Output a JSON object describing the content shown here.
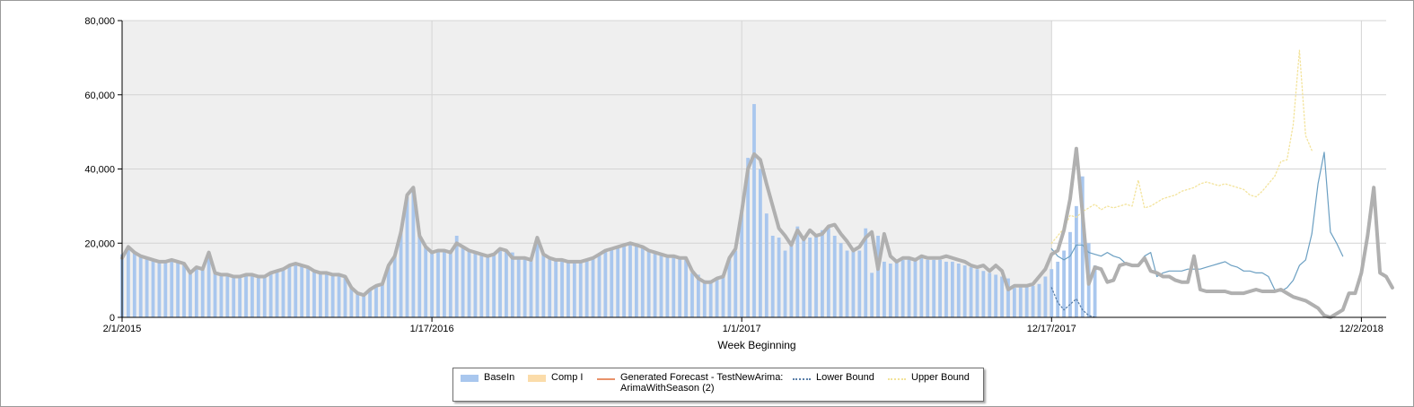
{
  "chart_data": {
    "type": "bar",
    "title": "",
    "xlabel": "Week Beginning",
    "ylabel": "",
    "ylim": [
      0,
      80000
    ],
    "yticks": [
      "0",
      "20,000",
      "40,000",
      "60,000",
      "80,000"
    ],
    "x_tick_labels": [
      "2/1/2015",
      "1/17/2016",
      "1/1/2017",
      "12/17/2017",
      "12/2/2018"
    ],
    "x_start": "2/1/2015",
    "x_interval": "weekly",
    "history_end": "12/17/2017",
    "x_end": "12/30/2018",
    "grid": true,
    "legend_position": "bottom",
    "series": [
      {
        "name": "BaseIn",
        "type": "bar",
        "color": "#a9c7ee",
        "x_start": "2/1/2015",
        "values": [
          17000,
          19000,
          17500,
          16500,
          16000,
          15500,
          15000,
          15000,
          15500,
          15000,
          14500,
          12000,
          13500,
          13000,
          17500,
          12000,
          11500,
          11500,
          11000,
          11000,
          11500,
          11500,
          11000,
          11000,
          12000,
          12500,
          13000,
          14000,
          14500,
          14000,
          13500,
          12500,
          12000,
          12000,
          11500,
          11500,
          11000,
          8000,
          6500,
          6000,
          7500,
          8500,
          9000,
          14000,
          16500,
          23000,
          32500,
          35000,
          22000,
          19000,
          17500,
          18000,
          18000,
          18000,
          22000,
          19000,
          18000,
          17500,
          17000,
          16500,
          17000,
          18500,
          18000,
          17500,
          16000,
          16000,
          16000,
          20000,
          17000,
          16000,
          15500,
          15500,
          15000,
          15000,
          15000,
          15500,
          16000,
          17000,
          18000,
          18500,
          19000,
          19500,
          20000,
          19500,
          19000,
          18000,
          17500,
          17000,
          16500,
          16500,
          16000,
          16000,
          12000,
          11500,
          10000,
          10000,
          10500,
          11500,
          16000,
          18000,
          29000,
          43000,
          57500,
          40000,
          28000,
          22000,
          21500,
          18000,
          19500,
          24500,
          21000,
          21500,
          22000,
          23500,
          24500,
          22000,
          20000,
          18000,
          18000,
          18000,
          24000,
          12000,
          22000,
          15000,
          14500,
          15000,
          15500,
          16000,
          16000,
          16000,
          15500,
          15500,
          15500,
          15000,
          15000,
          14500,
          14000,
          13500,
          13000,
          12500,
          12000,
          11500,
          11000,
          10500,
          8000,
          8500,
          8500,
          8500,
          9000,
          11000,
          13000,
          15000,
          18000,
          23000,
          30000,
          38000,
          20000,
          14000
        ]
      },
      {
        "name": "Comp I",
        "type": "bar",
        "color": "#fbdcaa",
        "values": []
      },
      {
        "name": "Generated Forecast - TestNewArima: ArimaWithSeason (2)",
        "type": "line",
        "color": "#e8926a",
        "values": []
      },
      {
        "name": "Lower Bound",
        "type": "line",
        "color": "#5a7fa8",
        "x_start": "12/17/2017",
        "values": [
          8000,
          4000,
          2000,
          3500,
          5000,
          2000,
          500,
          0
        ]
      },
      {
        "name": "Upper Bound",
        "type": "line",
        "color": "#f3e39a",
        "x_start": "12/17/2017",
        "values": [
          20000,
          22000,
          24000,
          27500,
          27000,
          28500,
          29500,
          30500,
          29000,
          30000,
          29500,
          30000,
          30500,
          30000,
          37000,
          29500,
          30000,
          31000,
          32000,
          32500,
          33000,
          34000,
          34500,
          35000,
          36000,
          36500,
          36000,
          35500,
          36000,
          35500,
          35000,
          34500,
          33000,
          32500,
          34000,
          36000,
          38000,
          42000,
          42500,
          52000,
          72000,
          49000,
          45000
        ]
      },
      {
        "name": "",
        "type": "line",
        "color": "#b0b0b0",
        "x_start": "2/1/2015",
        "values": [
          16000,
          19000,
          17500,
          16500,
          16000,
          15500,
          15000,
          15000,
          15500,
          15000,
          14500,
          12000,
          13500,
          13000,
          17500,
          12000,
          11500,
          11500,
          11000,
          11000,
          11500,
          11500,
          11000,
          11000,
          12000,
          12500,
          13000,
          14000,
          14500,
          14000,
          13500,
          12500,
          12000,
          12000,
          11500,
          11500,
          11000,
          8000,
          6500,
          6000,
          7500,
          8500,
          9000,
          14000,
          16500,
          23000,
          33000,
          35000,
          22000,
          19000,
          17500,
          18000,
          18000,
          17500,
          20000,
          19000,
          18000,
          17500,
          17000,
          16500,
          17000,
          18500,
          18000,
          16000,
          16000,
          16000,
          15500,
          21500,
          17000,
          16000,
          15500,
          15500,
          15000,
          15000,
          15000,
          15500,
          16000,
          17000,
          18000,
          18500,
          19000,
          19500,
          20000,
          19500,
          19000,
          18000,
          17500,
          17000,
          16500,
          16500,
          16000,
          16000,
          12500,
          10500,
          9500,
          9500,
          10500,
          11000,
          16000,
          18500,
          28500,
          40000,
          44000,
          42500,
          36000,
          30000,
          24000,
          22000,
          19500,
          23500,
          21000,
          23500,
          22000,
          22500,
          24500,
          25000,
          22500,
          20500,
          18000,
          19000,
          21500,
          23000,
          13000,
          22500,
          16500,
          15000,
          16000,
          16000,
          15500,
          16500,
          16000,
          16000,
          16000,
          16500,
          16000,
          15500,
          15000,
          14000,
          13500,
          14000,
          12500,
          14000,
          12500,
          7500,
          8500,
          8500,
          8500,
          9000,
          11000,
          13000,
          17000,
          18000,
          23500,
          32000,
          45500,
          28000,
          9000,
          13500,
          13000,
          9500,
          10000,
          14000,
          14500,
          14000,
          14000,
          16000,
          12500,
          12000,
          11000,
          11000,
          10000,
          9500,
          9500,
          16500,
          7500,
          7000,
          7000,
          7000,
          7000,
          6500,
          6500,
          6500,
          7000,
          7500,
          7000,
          7000,
          7000,
          7500,
          6500,
          5500,
          5000,
          4500,
          3500,
          2500,
          500,
          0,
          1000,
          2000,
          6500,
          6500,
          12000,
          22000,
          35000,
          12000,
          11000,
          8000
        ]
      },
      {
        "name": "",
        "type": "line",
        "color": "#6b9fc2",
        "x_start": "12/17/2017",
        "values": [
          18500,
          16500,
          15500,
          16500,
          19500,
          19500,
          17500,
          17000,
          16500,
          17500,
          16500,
          16000,
          14500,
          14000,
          14000,
          16500,
          17500,
          11000,
          12000,
          12500,
          12500,
          12500,
          13000,
          13000,
          13000,
          13500,
          14000,
          14500,
          15000,
          14000,
          13500,
          12500,
          12500,
          12000,
          12000,
          11000,
          7500,
          7000,
          8000,
          10000,
          14000,
          15500,
          22500,
          36000,
          44500,
          23000,
          20000,
          16500
        ]
      }
    ]
  }
}
